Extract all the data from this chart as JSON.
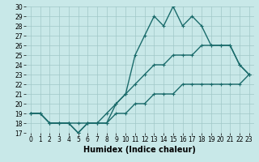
{
  "xlabel": "Humidex (Indice chaleur)",
  "ylabel": "",
  "bg_color": "#c8e8e8",
  "grid_color": "#a0c8c8",
  "line_color": "#1a6b6b",
  "ylim": [
    17,
    30
  ],
  "xlim": [
    -0.5,
    23.5
  ],
  "yticks": [
    17,
    18,
    19,
    20,
    21,
    22,
    23,
    24,
    25,
    26,
    27,
    28,
    29,
    30
  ],
  "xticks": [
    0,
    1,
    2,
    3,
    4,
    5,
    6,
    7,
    8,
    9,
    10,
    11,
    12,
    13,
    14,
    15,
    16,
    17,
    18,
    19,
    20,
    21,
    22,
    23
  ],
  "line1_x": [
    0,
    1,
    2,
    3,
    4,
    5,
    6,
    7,
    8,
    9,
    10,
    11,
    12,
    13,
    14,
    15,
    16,
    17,
    18,
    19,
    20,
    21,
    22,
    23
  ],
  "line1_y": [
    19,
    19,
    18,
    18,
    18,
    17,
    18,
    18,
    18,
    20,
    21,
    25,
    27,
    29,
    28,
    30,
    28,
    29,
    28,
    26,
    26,
    26,
    24,
    23
  ],
  "line2_x": [
    0,
    1,
    2,
    3,
    4,
    5,
    6,
    7,
    8,
    9,
    10,
    11,
    12,
    13,
    14,
    15,
    16,
    17,
    18,
    19,
    20,
    21,
    22,
    23
  ],
  "line2_y": [
    19,
    19,
    18,
    18,
    18,
    17,
    18,
    18,
    19,
    20,
    21,
    22,
    23,
    24,
    24,
    25,
    25,
    25,
    26,
    26,
    26,
    26,
    24,
    23
  ],
  "line3_x": [
    0,
    1,
    2,
    3,
    4,
    5,
    6,
    7,
    8,
    9,
    10,
    11,
    12,
    13,
    14,
    15,
    16,
    17,
    18,
    19,
    20,
    21,
    22,
    23
  ],
  "line3_y": [
    19,
    19,
    18,
    18,
    18,
    18,
    18,
    18,
    18,
    19,
    19,
    20,
    20,
    21,
    21,
    21,
    22,
    22,
    22,
    22,
    22,
    22,
    22,
    23
  ],
  "marker": "+",
  "markersize": 3,
  "linewidth": 1.0,
  "tick_fontsize": 5.5,
  "xlabel_fontsize": 7
}
